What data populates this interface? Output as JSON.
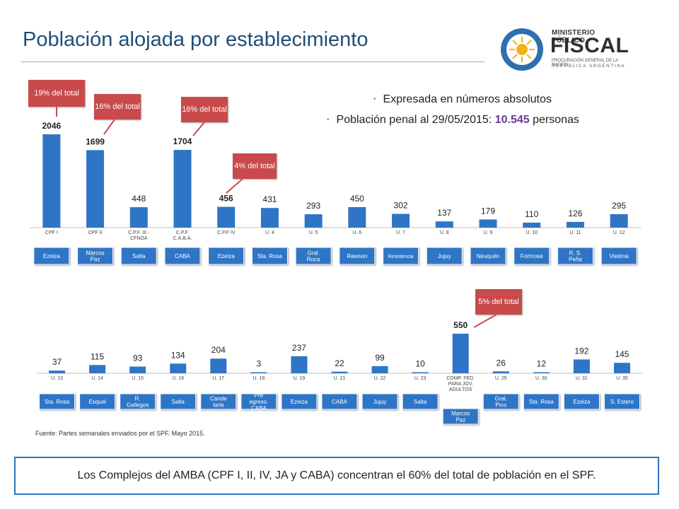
{
  "slide": {
    "title": "Población alojada por establecimiento",
    "bullets": {
      "line1": "Expresada en números absolutos",
      "line2_prefix": "Población penal al 29/05/2015: ",
      "line2_highlight": "10.545",
      "line2_suffix": " personas"
    },
    "logo": {
      "line1": "MINISTERIO PÚBLICO",
      "line2": "FISCAL",
      "line3": "PROCURACIÓN GENERAL DE LA NACIÓN",
      "line4": "REPÚBLICA ARGENTINA"
    },
    "source": "Fuente: Partes semanales enviados por el SPF. Mayo 2015.",
    "footer": "Los Complejos del AMBA (CPF I, II, IV, JA y CABA) concentran el 60% del total de población en el SPF.",
    "colors": {
      "bar": "#2e75c6",
      "label_box": "#2e75c6",
      "callout": "#c84a4a",
      "title": "#1f4e79",
      "highlight": "#6b3a94",
      "footer_border": "#2e74b5"
    },
    "callouts": [
      {
        "text": "19% del total",
        "target": "CPF I"
      },
      {
        "text": "16% del total",
        "target": "CPF II"
      },
      {
        "text": "16% del total",
        "target": "C.P.F. C.A.B.A."
      },
      {
        "text": "4% del total",
        "target": "C.P.F IV"
      },
      {
        "text": "5% del total",
        "target": "COMP. FED. PARA JOV. ADULTOS"
      }
    ]
  },
  "chart_data": [
    {
      "type": "bar",
      "categories": [
        "CPF I",
        "CPF II",
        "C.P.F. III - CFNOA",
        "C.P.F. C.A.B.A.",
        "C.P.F IV",
        "U. 4",
        "U. 5",
        "U. 6",
        "U. 7",
        "U. 8",
        "U. 9",
        "U. 10",
        "U. 11",
        "U. 12"
      ],
      "values": [
        2046,
        1699,
        448,
        1704,
        456,
        431,
        293,
        450,
        302,
        137,
        179,
        110,
        126,
        295
      ],
      "bold_labels": [
        true,
        true,
        false,
        true,
        true,
        false,
        false,
        false,
        false,
        false,
        false,
        false,
        false,
        false
      ],
      "locations": [
        "Ezeiza",
        "Marcos Paz",
        "Salta",
        "CABA",
        "Ezeiza",
        "Sta. Rosa",
        "Gral. Roca",
        "Rawson",
        "Resistencia",
        "Jujuy",
        "Neuquén",
        "Formosa",
        "R. S. Peña",
        "Viedma"
      ]
    },
    {
      "type": "bar",
      "categories": [
        "U. 13",
        "U. 14",
        "U. 15",
        "U. 16",
        "U. 17",
        "U. 18",
        "U. 19",
        "U. 21",
        "U. 22",
        "U. 23",
        "COMP. FED. PARA JOV. ADULTOS",
        "U. 25",
        "U. 30",
        "U. 31",
        "U. 35"
      ],
      "values": [
        37,
        115,
        93,
        134,
        204,
        3,
        237,
        22,
        99,
        10,
        550,
        26,
        12,
        192,
        145
      ],
      "bold_labels": [
        false,
        false,
        false,
        false,
        false,
        false,
        false,
        false,
        false,
        false,
        true,
        false,
        false,
        false,
        false
      ],
      "locations": [
        "Sta. Rosa",
        "Esquel",
        "R. Gallegos",
        "Salta",
        "Cande laria",
        "Pre egreso. CABA",
        "Ezeiza",
        "CABA",
        "Jujuy",
        "Salta",
        "Marcos Paz",
        "Gral. Pico",
        "Sta. Rosa",
        "Ezeiza",
        "S. Estero"
      ]
    }
  ]
}
